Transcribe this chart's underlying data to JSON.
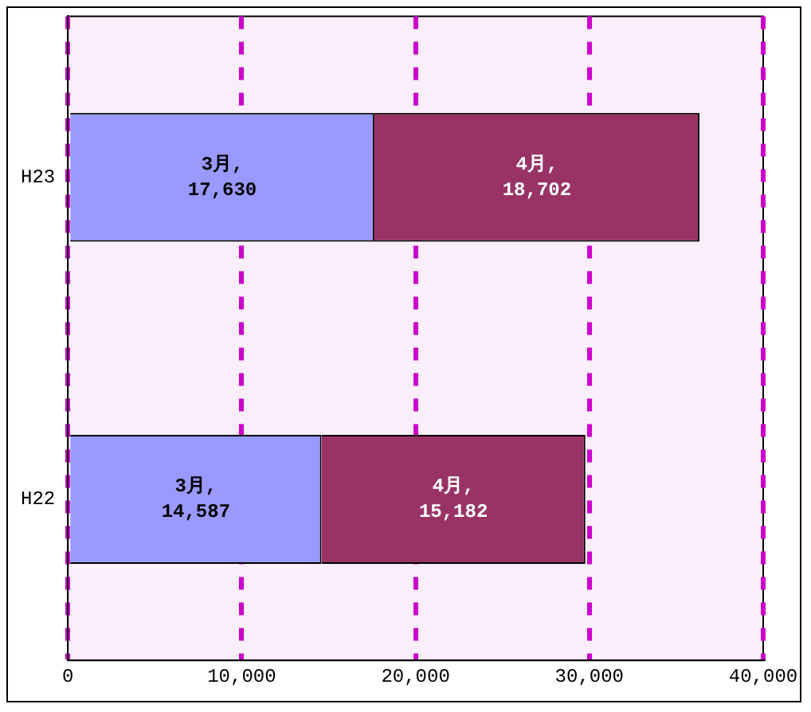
{
  "chart_data": {
    "type": "bar",
    "orientation": "horizontal",
    "stacked": true,
    "categories": [
      "H23",
      "H22"
    ],
    "series": [
      {
        "name": "3月",
        "color": "#9999ff",
        "values": [
          17630,
          14587
        ],
        "value_labels": [
          ",\n17,630",
          ",\n14,587"
        ]
      },
      {
        "name": "4月",
        "color": "#993366",
        "values": [
          18702,
          15182
        ],
        "value_labels": [
          ",\n18,702",
          ",\n15,182"
        ]
      }
    ],
    "xlim": [
      0,
      40000
    ],
    "xticks": [
      0,
      {
        "value": 10000,
        "label": "10,000"
      },
      {
        "value": 20000,
        "label": "20,000"
      },
      {
        "value": 30000,
        "label": "30,000"
      },
      {
        "value": 40000,
        "label": "40,000"
      }
    ],
    "grid": "x",
    "legend": false
  }
}
